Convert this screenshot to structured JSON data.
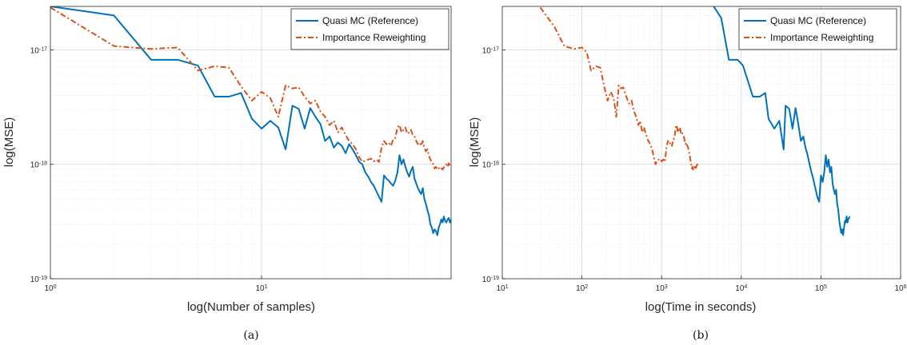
{
  "colors": {
    "qmc": "#0072BD",
    "irw": "#D95319",
    "grid": "#e6e6e6",
    "axis": "#262626"
  },
  "chart_data": [
    {
      "type": "line",
      "caption": "(a)",
      "xlabel": "log(Number of samples)",
      "ylabel": "log(MSE)",
      "xscale": "log",
      "yscale": "log",
      "xlim": [
        1,
        79
      ],
      "ylim": [
        1e-19,
        2.4e-17
      ],
      "grid": true,
      "legend_position": "top-right",
      "x_ticks": [
        {
          "v": 1,
          "b": "10",
          "e": "0"
        },
        {
          "v": 10,
          "b": "10",
          "e": "1"
        }
      ],
      "y_ticks": [
        {
          "v": 1e-19,
          "b": "10",
          "e": "-19"
        },
        {
          "v": 1e-18,
          "b": "10",
          "e": "-18"
        },
        {
          "v": 1e-17,
          "b": "10",
          "e": "-17"
        }
      ],
      "series": [
        {
          "name": "Quasi MC (Reference)",
          "style": "solid",
          "color": "#0072BD",
          "x": [
            1,
            2,
            3,
            4,
            5,
            6,
            7,
            8,
            9,
            10,
            11,
            12,
            13,
            14,
            15,
            16,
            17,
            18,
            19,
            20,
            21,
            22,
            23,
            24,
            25,
            26,
            27,
            28,
            29,
            30,
            31,
            32,
            33,
            34,
            35,
            36,
            37,
            38,
            39,
            40,
            41,
            42,
            43,
            44,
            45,
            46,
            47,
            48,
            49,
            50,
            51,
            52,
            53,
            54,
            55,
            56,
            57,
            58,
            59,
            60,
            61,
            62,
            63,
            64,
            65,
            66,
            67,
            68,
            69,
            70,
            71,
            72,
            73,
            74,
            75,
            76,
            77,
            78,
            79
          ],
          "y": [
            2.4e-17,
            2e-17,
            8.2e-18,
            8.2e-18,
            7.3e-18,
            3.9e-18,
            3.9e-18,
            4.2e-18,
            2.5e-18,
            2.05e-18,
            2.4e-18,
            2.1e-18,
            1.35e-18,
            3.25e-18,
            3.05e-18,
            2.05e-18,
            3.1e-18,
            2.6e-18,
            2.25e-18,
            1.6e-18,
            1.75e-18,
            1.4e-18,
            1.55e-18,
            1.45e-18,
            1.25e-18,
            1.5e-18,
            1.35e-18,
            1.2e-18,
            1.05e-18,
            1e-18,
            8.5e-19,
            7.8e-19,
            7e-19,
            6.5e-19,
            5.8e-19,
            5.2e-19,
            4.7e-19,
            8e-19,
            7.5e-19,
            7.2e-19,
            6.8e-19,
            6.5e-19,
            7.2e-19,
            8.5e-19,
            1.2e-18,
            1e-18,
            1.1e-18,
            9.5e-19,
            8.5e-19,
            7.8e-19,
            8.8e-19,
            9.5e-19,
            7.5e-19,
            6.8e-19,
            6.2e-19,
            5.8e-19,
            5.5e-19,
            6.2e-19,
            5e-19,
            4.5e-19,
            4e-19,
            3.6e-19,
            3e-19,
            2.8e-19,
            2.5e-19,
            2.7e-19,
            2.6e-19,
            2.4e-19,
            2.8e-19,
            3e-19,
            3.3e-19,
            3.1e-19,
            3.5e-19,
            3.2e-19,
            3.1e-19,
            3.3e-19,
            3.4e-19,
            3.1e-19,
            3.3e-19
          ]
        },
        {
          "name": "Importance Reweighting",
          "style": "dashdot",
          "color": "#D95319",
          "x": [
            1,
            2,
            3,
            4,
            5,
            6,
            7,
            8,
            9,
            10,
            11,
            12,
            13,
            14,
            15,
            16,
            17,
            18,
            19,
            20,
            21,
            22,
            23,
            24,
            25,
            26,
            27,
            28,
            29,
            30,
            31,
            32,
            33,
            34,
            35,
            36,
            37,
            38,
            39,
            40,
            41,
            42,
            43,
            44,
            45,
            46,
            47,
            48,
            49,
            50,
            51,
            52,
            53,
            54,
            55,
            56,
            57,
            58,
            59,
            60,
            61,
            62,
            63,
            64,
            65,
            66,
            67,
            68,
            69,
            70,
            71,
            72,
            73,
            74,
            75,
            76,
            77,
            78,
            79
          ],
          "y": [
            2.35e-17,
            1.08e-17,
            1.02e-17,
            1.05e-17,
            6.6e-18,
            7.2e-18,
            7e-18,
            4.8e-18,
            3.6e-18,
            4.3e-18,
            3.8e-18,
            2.6e-18,
            4.9e-18,
            4.6e-18,
            4.7e-18,
            3.9e-18,
            3.4e-18,
            3.6e-18,
            2.9e-18,
            2.6e-18,
            2.2e-18,
            2.4e-18,
            1.9e-18,
            2.1e-18,
            1.8e-18,
            1.6e-18,
            1.5e-18,
            1.35e-18,
            1.15e-18,
            1.05e-18,
            1.08e-18,
            1.1e-18,
            1.12e-18,
            1.06e-18,
            1.1e-18,
            1.05e-18,
            1.4e-18,
            1.6e-18,
            1.5e-18,
            1.55e-18,
            1.45e-18,
            1.65e-18,
            1.7e-18,
            2.1e-18,
            2.2e-18,
            1.9e-18,
            2e-18,
            2.1e-18,
            1.85e-18,
            1.9e-18,
            2e-18,
            1.8e-18,
            1.75e-18,
            1.6e-18,
            1.5e-18,
            1.55e-18,
            1.45e-18,
            1.6e-18,
            1.4e-18,
            1.3e-18,
            1.35e-18,
            1.2e-18,
            1.1e-18,
            1.05e-18,
            1e-18,
            9.2e-19,
            9.5e-19,
            9e-19,
            9.2e-19,
            9.5e-19,
            9.2e-19,
            9e-19,
            9.4e-19,
            9.7e-19,
            1e-18,
            9.5e-19,
            1.02e-18,
            9.8e-19,
            1e-18
          ]
        }
      ]
    },
    {
      "type": "line",
      "caption": "(b)",
      "xlabel": "log(Time in seconds)",
      "ylabel": "log(MSE)",
      "xscale": "log",
      "yscale": "log",
      "xlim": [
        10,
        1000000
      ],
      "ylim": [
        1e-19,
        2.4e-17
      ],
      "grid": true,
      "legend_position": "top-right",
      "x_ticks": [
        {
          "v": 10,
          "b": "10",
          "e": "1"
        },
        {
          "v": 100,
          "b": "10",
          "e": "2"
        },
        {
          "v": 1000,
          "b": "10",
          "e": "3"
        },
        {
          "v": 10000,
          "b": "10",
          "e": "4"
        },
        {
          "v": 100000,
          "b": "10",
          "e": "5"
        },
        {
          "v": 1000000,
          "b": "10",
          "e": "6"
        }
      ],
      "y_ticks": [
        {
          "v": 1e-19,
          "b": "10",
          "e": "-19"
        },
        {
          "v": 1e-18,
          "b": "10",
          "e": "-18"
        },
        {
          "v": 1e-17,
          "b": "10",
          "e": "-17"
        }
      ],
      "series": [
        {
          "name": "Quasi MC (Reference)",
          "style": "solid",
          "color": "#0072BD",
          "x": [
            4500,
            5600,
            7000,
            9000,
            10500,
            14000,
            17000,
            20000,
            22000,
            26000,
            30000,
            34000,
            36000,
            40000,
            44000,
            48000,
            52000,
            56000,
            60000,
            64000,
            68000,
            72000,
            76000,
            80000,
            85000,
            90000,
            95000,
            100000,
            105000,
            110000,
            115000,
            120000,
            125000,
            130000,
            135000,
            140000,
            145000,
            150000,
            155000,
            160000,
            165000,
            170000,
            175000,
            180000,
            185000,
            190000,
            195000,
            200000,
            205000,
            210000,
            215000,
            220000,
            225000,
            230000
          ],
          "y": [
            2.4e-17,
            1.9e-17,
            8.2e-18,
            8.2e-18,
            7.3e-18,
            3.9e-18,
            3.9e-18,
            4.2e-18,
            2.5e-18,
            2.05e-18,
            2.4e-18,
            1.35e-18,
            3.25e-18,
            3.05e-18,
            2.05e-18,
            3.1e-18,
            2.25e-18,
            1.6e-18,
            1.75e-18,
            1.4e-18,
            1.2e-18,
            1e-18,
            8.5e-19,
            7.5e-19,
            6.2e-19,
            5.2e-19,
            4.7e-19,
            8e-19,
            7e-19,
            8.5e-19,
            1.2e-18,
            9.5e-19,
            1.1e-18,
            8.5e-19,
            9.5e-19,
            6.8e-19,
            6e-19,
            5.5e-19,
            6e-19,
            4.5e-19,
            4e-19,
            3.2e-19,
            2.8e-19,
            2.5e-19,
            2.7e-19,
            2.4e-19,
            2.8e-19,
            3.2e-19,
            3.1e-19,
            3.5e-19,
            3.1e-19,
            3.3e-19,
            3.4e-19,
            3.5e-19
          ]
        },
        {
          "name": "Importance Reweighting",
          "style": "dashdot",
          "color": "#D95319",
          "x": [
            30,
            45,
            60,
            80,
            100,
            115,
            130,
            150,
            170,
            190,
            210,
            230,
            250,
            270,
            290,
            310,
            330,
            360,
            390,
            420,
            450,
            480,
            510,
            540,
            570,
            600,
            640,
            680,
            720,
            760,
            800,
            840,
            880,
            920,
            960,
            1000,
            1050,
            1100,
            1150,
            1200,
            1250,
            1300,
            1350,
            1400,
            1450,
            1500,
            1550,
            1600,
            1650,
            1700,
            1750,
            1800,
            1850,
            1900,
            1950,
            2000,
            2050,
            2100,
            2150,
            2200,
            2250,
            2300,
            2350,
            2400,
            2450,
            2500,
            2550,
            2600,
            2650,
            2700,
            2750,
            2800,
            2850,
            2900
          ],
          "y": [
            2.35e-17,
            1.6e-17,
            1.08e-17,
            1.02e-17,
            1.05e-17,
            9.5e-18,
            6.6e-18,
            7.2e-18,
            7e-18,
            4.8e-18,
            3.6e-18,
            4.3e-18,
            3.8e-18,
            2.6e-18,
            4.9e-18,
            4.6e-18,
            4.7e-18,
            3.9e-18,
            3.4e-18,
            3.6e-18,
            2.9e-18,
            2.6e-18,
            2.2e-18,
            2.4e-18,
            1.9e-18,
            2.1e-18,
            1.8e-18,
            1.6e-18,
            1.5e-18,
            1.35e-18,
            1.15e-18,
            1e-18,
            1.08e-18,
            1.1e-18,
            1.12e-18,
            1.06e-18,
            1.1e-18,
            1.05e-18,
            1.4e-18,
            1.6e-18,
            1.5e-18,
            1.55e-18,
            1.45e-18,
            1.65e-18,
            1.7e-18,
            2.1e-18,
            2.2e-18,
            1.9e-18,
            2e-18,
            2.1e-18,
            1.85e-18,
            1.9e-18,
            1.8e-18,
            1.75e-18,
            1.6e-18,
            1.5e-18,
            1.55e-18,
            1.45e-18,
            1.4e-18,
            1.3e-18,
            1.2e-18,
            1.1e-18,
            1e-18,
            9.2e-19,
            9.5e-19,
            9e-19,
            9.2e-19,
            9.5e-19,
            9e-19,
            9.4e-19,
            9.7e-19,
            1e-18,
            9.8e-19,
            1.02e-18
          ]
        }
      ]
    }
  ]
}
